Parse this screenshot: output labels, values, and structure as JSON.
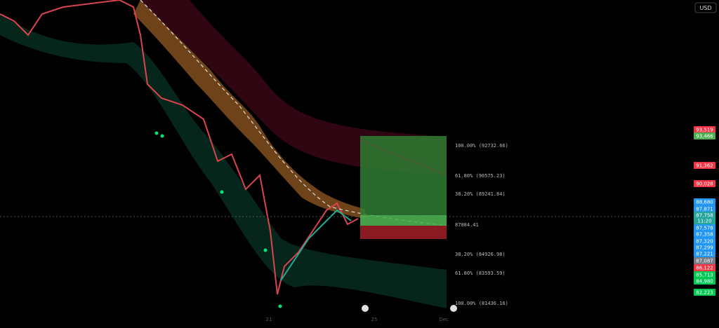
{
  "header": {
    "currency": "USD"
  },
  "price_axis": {
    "labels": [
      {
        "text": "93,519",
        "color": "#f23645"
      },
      {
        "text": "93,466",
        "color": "#4caf50"
      },
      {
        "text": "91,362",
        "color": "#f23645"
      },
      {
        "text": "90,028",
        "color": "#f23645"
      },
      {
        "text": "88,680",
        "color": "#2196f3"
      },
      {
        "text": "87,871",
        "color": "#2196f3"
      },
      {
        "text": "87,758",
        "color": "#26a69a"
      },
      {
        "text": "11:20",
        "color": "#26a69a"
      },
      {
        "text": "87,578",
        "color": "#2196f3"
      },
      {
        "text": "87,358",
        "color": "#2196f3"
      },
      {
        "text": "87,320",
        "color": "#2196f3"
      },
      {
        "text": "87,299",
        "color": "#2196f3"
      },
      {
        "text": "87,221",
        "color": "#2196f3"
      },
      {
        "text": "87,087",
        "color": "#787b86"
      },
      {
        "text": "86,122",
        "color": "#f23645"
      },
      {
        "text": "85,713",
        "color": "#00c853"
      },
      {
        "text": "84,980",
        "color": "#00c853"
      },
      {
        "text": "82,223",
        "color": "#00c853"
      }
    ]
  },
  "fib_levels": [
    "100.00% (92732.66)",
    "61.80% (90575.23)",
    "38.20% (89241.84)",
    "87084.41",
    "38.20% (84926.98)",
    "61.80% (83593.59)",
    "100.00% (81436.16)"
  ],
  "time_axis": [
    "21",
    "25",
    "Dec"
  ]
}
